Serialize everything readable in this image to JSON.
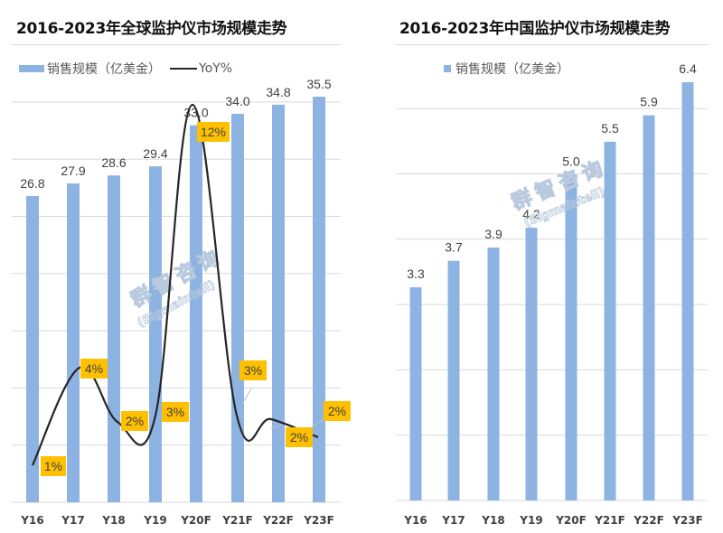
{
  "left": {
    "title": "2016-2023年全球监护仪市场规模走势",
    "legend": {
      "bar_label": "销售规模（亿美金）",
      "line_label": "YoY%"
    },
    "watermark": {
      "cn": "群智咨询",
      "en": "(Sigmaintell)"
    }
  },
  "right": {
    "title": "2016-2023年中国监护仪市场规模走势",
    "legend": {
      "bar_label": "销售规模（亿美金）"
    },
    "watermark": {
      "cn": "群智咨询",
      "en": "(Sigmaintell)"
    }
  },
  "colors": {
    "bar": "#8db3e2",
    "line": "#262626",
    "label_box": "#ffc000",
    "grid": "#d9d9d9"
  },
  "chart_data": [
    {
      "type": "bar+line",
      "title": "2016-2023年全球监护仪市场规模走势",
      "categories": [
        "Y16",
        "Y17",
        "Y18",
        "Y19",
        "Y20F",
        "Y21F",
        "Y22F",
        "Y23F"
      ],
      "series": [
        {
          "name": "销售规模（亿美金）",
          "type": "bar",
          "values": [
            26.8,
            27.9,
            28.6,
            29.4,
            33.0,
            34.0,
            34.8,
            35.5
          ],
          "labels": [
            "26.8",
            "27.9",
            "28.6",
            "29.4",
            "33.0",
            "34.0",
            "34.8",
            "35.5"
          ]
        },
        {
          "name": "YoY%",
          "type": "line",
          "values": [
            1,
            4,
            2,
            3,
            12,
            3,
            2,
            2
          ],
          "labels": [
            "1%",
            "4%",
            "2%",
            "3%",
            "12%",
            "3%",
            "2%",
            "2%"
          ]
        }
      ],
      "xlabel": "",
      "ylabel": "",
      "grid": true,
      "legend_position": "top-left"
    },
    {
      "type": "bar",
      "title": "2016-2023年中国监护仪市场规模走势",
      "categories": [
        "Y16",
        "Y17",
        "Y18",
        "Y19",
        "Y20F",
        "Y21F",
        "Y22F",
        "Y23F"
      ],
      "series": [
        {
          "name": "销售规模（亿美金）",
          "values": [
            3.3,
            3.7,
            3.9,
            4.2,
            5.0,
            5.5,
            5.9,
            6.4
          ],
          "labels": [
            "3.3",
            "3.7",
            "3.9",
            "4.2",
            "5.0",
            "5.5",
            "5.9",
            "6.4"
          ]
        }
      ],
      "xlabel": "",
      "ylabel": "",
      "grid": true,
      "legend_position": "top-left"
    }
  ]
}
